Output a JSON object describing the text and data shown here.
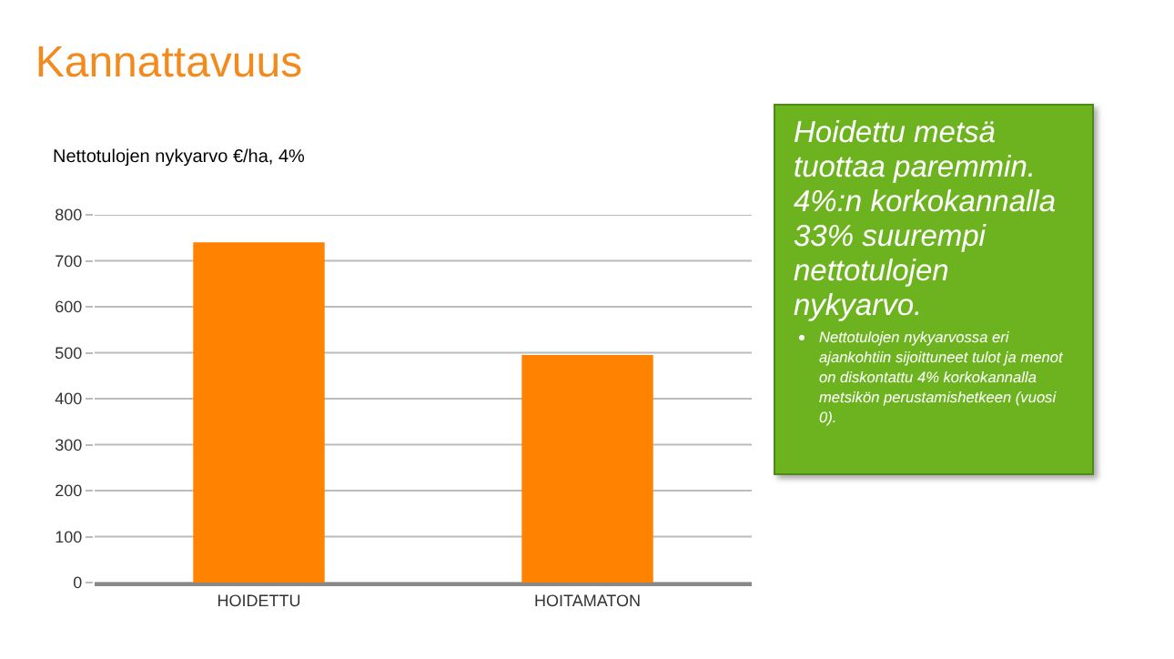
{
  "chart_data": {
    "type": "bar",
    "title": "Kannattavuus",
    "subtitle": "Nettotulojen nykyarvo €/ha, 4%",
    "categories": [
      "HOIDETTU",
      "HOITAMATON"
    ],
    "values": [
      740,
      495
    ],
    "color": "#ff8200",
    "ylim": [
      0,
      800
    ],
    "yticks": [
      0,
      100,
      200,
      300,
      400,
      500,
      600,
      700,
      800
    ],
    "grid": "y",
    "annotations": [
      "Hoidettu metsä tuottaa paremmin. 4%:n korkokannalla 33% suurempi nettotulojen nykyarvo.",
      "Nettotulojen nykyarvossa eri ajankohtiin sijoittuneet tulot ja menot on diskontattu 4% korkokannalla metsikön perustamishetkeen (vuosi 0)."
    ]
  }
}
